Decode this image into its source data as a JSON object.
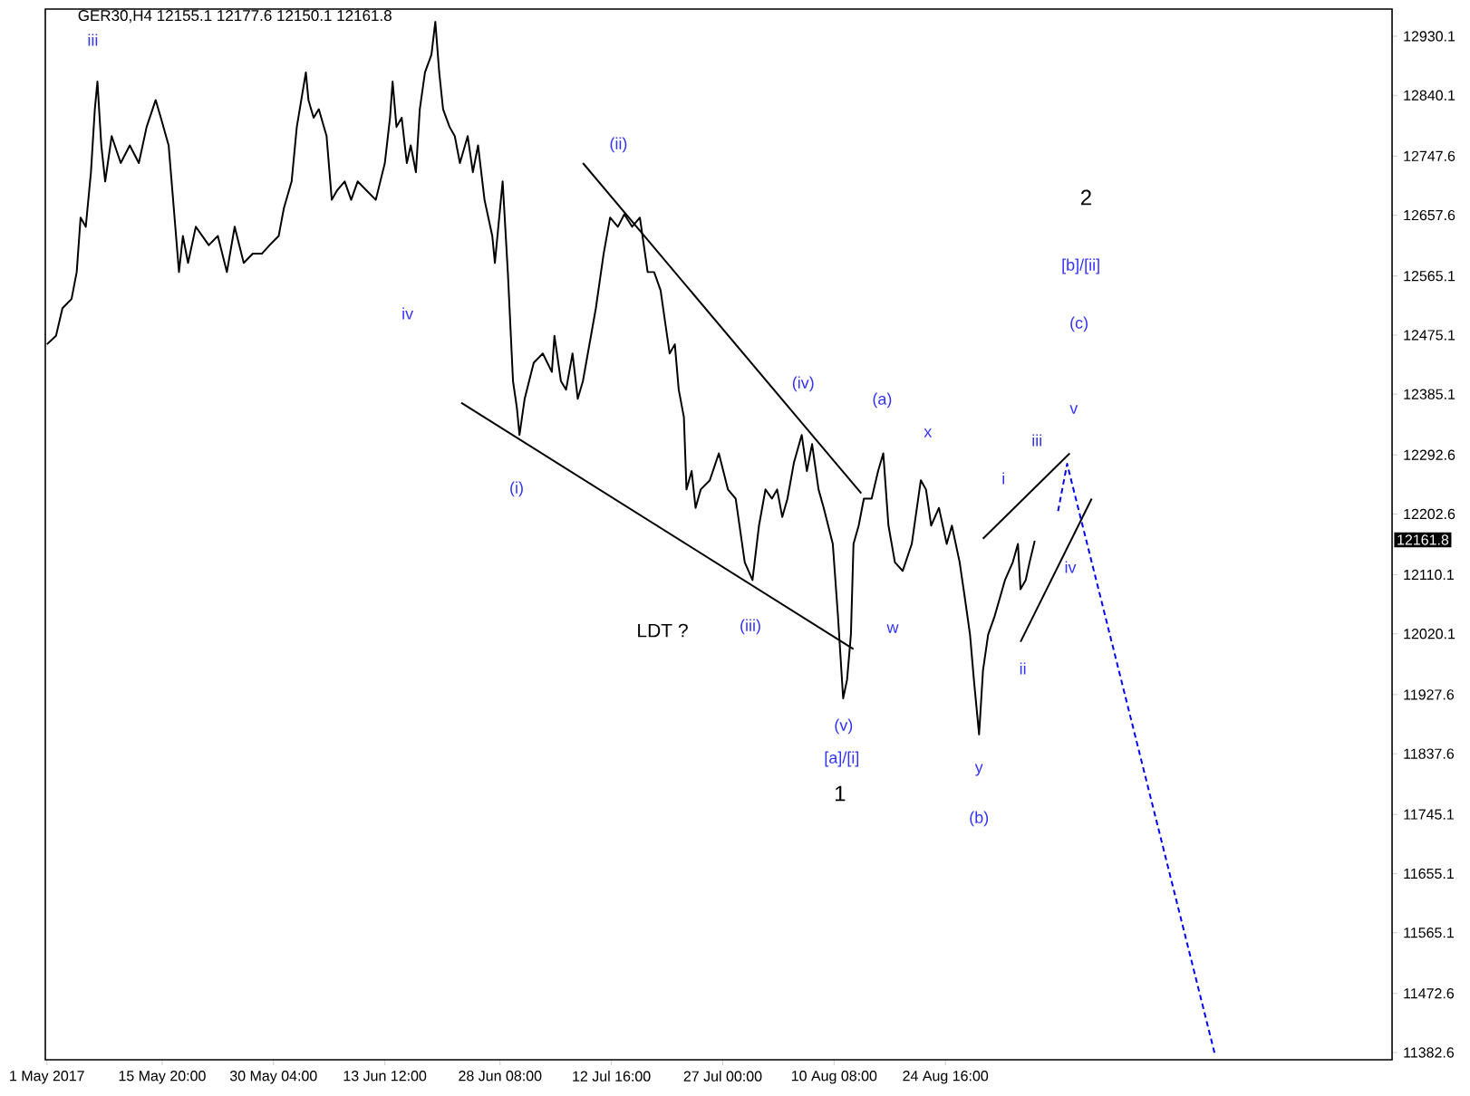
{
  "chart_data": {
    "type": "line",
    "title": "GER30,H4  12155.1 12177.6 12150.1 12161.8",
    "xlim": [
      "2017-04-30T19:00",
      "2017-10-21T04:00"
    ],
    "ylim": [
      11371.6,
      12971.5
    ],
    "xticks": [
      {
        "value": "2017-05-01T00:00",
        "label": "1 May 2017"
      },
      {
        "value": "2017-05-15T20:00",
        "label": "15 May 20:00"
      },
      {
        "value": "2017-05-30T04:00",
        "label": "30 May 04:00"
      },
      {
        "value": "2017-06-13T12:00",
        "label": "13 Jun 12:00"
      },
      {
        "value": "2017-06-28T08:00",
        "label": "28 Jun 08:00"
      },
      {
        "value": "2017-07-12T16:00",
        "label": "12 Jul 16:00"
      },
      {
        "value": "2017-07-27T00:00",
        "label": "27 Jul 00:00"
      },
      {
        "value": "2017-08-10T08:00",
        "label": "10 Aug 08:00"
      },
      {
        "value": "2017-08-24T16:00",
        "label": "24 Aug 16:00"
      }
    ],
    "yticks": [
      12930.1,
      12840.1,
      12747.6,
      12657.6,
      12565.1,
      12475.1,
      12385.1,
      12292.6,
      12202.6,
      12110.1,
      12020.1,
      11927.6,
      11837.6,
      11745.1,
      11655.1,
      11565.1,
      11472.6,
      11382.6
    ],
    "grid": false,
    "series": [
      {
        "color": "#000000",
        "x": [
          "2017-05-01T00:00",
          "2017-05-02T04:00",
          "2017-05-03T00:00",
          "2017-05-04T04:00",
          "2017-05-04T20:00",
          "2017-05-05T08:00",
          "2017-05-06T00:00",
          "2017-05-06T16:00",
          "2017-05-07T04:00",
          "2017-05-07T12:00",
          "2017-05-08T00:00",
          "2017-05-08T12:00",
          "2017-05-09T08:00",
          "2017-05-10T12:00",
          "2017-05-11T16:00",
          "2017-05-12T20:00",
          "2017-05-13T20:00",
          "2017-05-15T00:00",
          "2017-05-15T16:00",
          "2017-05-16T16:00",
          "2017-05-17T08:00",
          "2017-05-18T00:00",
          "2017-05-18T12:00",
          "2017-05-19T04:00",
          "2017-05-20T04:00",
          "2017-05-21T20:00",
          "2017-05-23T00:00",
          "2017-05-24T04:00",
          "2017-05-25T04:00",
          "2017-05-26T08:00",
          "2017-05-27T12:00",
          "2017-05-28T16:00",
          "2017-05-29T16:00",
          "2017-05-30T20:00",
          "2017-05-31T12:00",
          "2017-06-01T12:00",
          "2017-06-02T04:00",
          "2017-06-03T08:00",
          "2017-06-03T16:00",
          "2017-06-04T08:00",
          "2017-06-05T00:00",
          "2017-06-06T00:00",
          "2017-06-06T16:00",
          "2017-06-07T08:00",
          "2017-06-08T08:00",
          "2017-06-09T04:00",
          "2017-06-10T00:00",
          "2017-06-11T04:00",
          "2017-06-12T08:00",
          "2017-06-13T12:00",
          "2017-06-14T04:00",
          "2017-06-14T12:00",
          "2017-06-15T00:00",
          "2017-06-15T16:00",
          "2017-06-16T08:00",
          "2017-06-16T20:00",
          "2017-06-17T12:00",
          "2017-06-18T00:00",
          "2017-06-18T16:00",
          "2017-06-19T12:00",
          "2017-06-20T00:00",
          "2017-06-20T12:00",
          "2017-06-21T00:00",
          "2017-06-21T20:00",
          "2017-06-22T12:00",
          "2017-06-23T04:00",
          "2017-06-24T04:00",
          "2017-06-24T20:00",
          "2017-06-25T12:00",
          "2017-06-26T08:00",
          "2017-06-27T08:00",
          "2017-06-27T16:00",
          "2017-06-28T16:00",
          "2017-06-29T08:00",
          "2017-06-30T00:00",
          "2017-06-30T12:00",
          "2017-06-30T20:00",
          "2017-07-01T12:00",
          "2017-07-02T16:00",
          "2017-07-03T20:00",
          "2017-07-05T00:00",
          "2017-07-05T08:00",
          "2017-07-06T04:00",
          "2017-07-06T20:00",
          "2017-07-07T16:00",
          "2017-07-08T08:00",
          "2017-07-09T00:00",
          "2017-07-10T16:00",
          "2017-07-11T16:00",
          "2017-07-12T12:00",
          "2017-07-13T12:00",
          "2017-07-14T08:00",
          "2017-07-15T08:00",
          "2017-07-16T08:00",
          "2017-07-17T08:00",
          "2017-07-18T04:00",
          "2017-07-19T00:00",
          "2017-07-19T16:00",
          "2017-07-20T04:00",
          "2017-07-20T20:00",
          "2017-07-21T08:00",
          "2017-07-22T00:00",
          "2017-07-22T08:00",
          "2017-07-23T00:00",
          "2017-07-23T12:00",
          "2017-07-24T04:00",
          "2017-07-25T08:00",
          "2017-07-26T12:00",
          "2017-07-27T16:00",
          "2017-07-28T16:00",
          "2017-07-29T20:00",
          "2017-07-30T20:00",
          "2017-07-31T16:00",
          "2017-08-01T12:00",
          "2017-08-02T08:00",
          "2017-08-03T00:00",
          "2017-08-03T16:00",
          "2017-08-04T08:00",
          "2017-08-05T04:00",
          "2017-08-06T04:00",
          "2017-08-06T20:00",
          "2017-08-07T12:00",
          "2017-08-08T08:00",
          "2017-08-09T00:00",
          "2017-08-10T04:00",
          "2017-08-10T20:00",
          "2017-08-11T12:00",
          "2017-08-12T00:00",
          "2017-08-12T12:00",
          "2017-08-12T20:00",
          "2017-08-13T12:00",
          "2017-08-14T04:00",
          "2017-08-15T04:00",
          "2017-08-16T00:00",
          "2017-08-16T16:00",
          "2017-08-17T08:00",
          "2017-08-18T04:00",
          "2017-08-19T04:00",
          "2017-08-20T08:00",
          "2017-08-21T12:00",
          "2017-08-22T04:00",
          "2017-08-22T20:00",
          "2017-08-23T20:00",
          "2017-08-24T20:00",
          "2017-08-25T12:00",
          "2017-08-26T12:00",
          "2017-08-27T04:00",
          "2017-08-27T20:00",
          "2017-08-28T08:00",
          "2017-08-29T00:00",
          "2017-08-29T12:00",
          "2017-08-30T04:00",
          "2017-08-31T00:00",
          "2017-09-01T08:00",
          "2017-09-02T08:00",
          "2017-09-03T00:00",
          "2017-09-03T08:00",
          "2017-09-04T00:00",
          "2017-09-04T12:00",
          "2017-09-05T04:00"
        ],
        "values": [
          12461,
          12474,
          12516,
          12530,
          12571,
          12654,
          12640,
          12723,
          12819,
          12861,
          12764,
          12709,
          12778,
          12737,
          12764,
          12737,
          12792,
          12833,
          12806,
          12764,
          12668,
          12571,
          12626,
          12585,
          12640,
          12612,
          12626,
          12571,
          12640,
          12585,
          12599,
          12599,
          12612,
          12626,
          12668,
          12709,
          12792,
          12875,
          12833,
          12806,
          12819,
          12778,
          12681,
          12695,
          12709,
          12681,
          12709,
          12695,
          12681,
          12737,
          12806,
          12861,
          12792,
          12806,
          12737,
          12764,
          12723,
          12819,
          12875,
          12902,
          12952,
          12875,
          12819,
          12792,
          12778,
          12737,
          12778,
          12723,
          12764,
          12681,
          12626,
          12585,
          12709,
          12571,
          12405,
          12364,
          12323,
          12378,
          12433,
          12447,
          12419,
          12474,
          12405,
          12392,
          12447,
          12378,
          12405,
          12516,
          12599,
          12654,
          12640,
          12659,
          12640,
          12654,
          12571,
          12571,
          12543,
          12488,
          12447,
          12461,
          12392,
          12350,
          12240,
          12268,
          12212,
          12240,
          12254,
          12295,
          12240,
          12226,
          12129,
          12102,
          12185,
          12240,
          12226,
          12240,
          12198,
          12226,
          12281,
          12323,
          12268,
          12309,
          12240,
          12212,
          12157,
          12047,
          11922,
          11950,
          12019,
          12157,
          12185,
          12226,
          12226,
          12268,
          12295,
          12185,
          12129,
          12116,
          12157,
          12254,
          12240,
          12185,
          12212,
          12157,
          12185,
          12129,
          12075,
          12019,
          11950,
          11867,
          11964,
          12019,
          12047,
          12102,
          12129,
          12157,
          12088,
          12102,
          12129,
          12162
        ]
      },
      {
        "color": "#000000",
        "x": [
          "2017-06-23T08:00",
          "2017-08-12T20:00"
        ],
        "values": [
          12372,
          11997
        ]
      },
      {
        "color": "#000000",
        "x": [
          "2017-07-09T00:00",
          "2017-08-13T20:00"
        ],
        "values": [
          12737,
          12234
        ]
      },
      {
        "color": "#000000",
        "x": [
          "2017-08-29T12:00",
          "2017-09-09T16:00"
        ],
        "values": [
          12165,
          12295
        ]
      },
      {
        "color": "#000000",
        "x": [
          "2017-09-03T08:00",
          "2017-09-12T12:00"
        ],
        "values": [
          12008,
          12226
        ]
      },
      {
        "color": "#0000ff",
        "line_style": "dashed",
        "x": [
          "2017-09-08T04:00",
          "2017-09-09T08:00",
          "2017-09-28T08:00"
        ],
        "values": [
          12207,
          12279,
          11381
        ]
      }
    ],
    "annotations": [
      "12161.8",
      "iii",
      "iv",
      "(i)",
      "(ii)",
      "(iii)",
      "(iv)",
      "LDT ?",
      "(a)",
      "x",
      "w",
      "(v)",
      "[a]/[i]",
      "1",
      "y",
      "(b)",
      "i",
      "ii",
      "iii",
      "iv",
      "v",
      "(c)",
      "[b]/[ii]",
      "2"
    ]
  }
}
